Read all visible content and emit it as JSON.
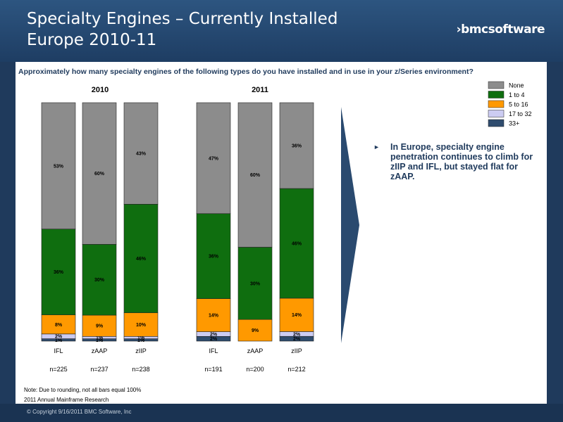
{
  "slide": {
    "title_line1": "Specialty Engines – Currently Installed",
    "title_line2": "Europe 2010-11",
    "logo_text": "›bmcsoftware",
    "question": "Approximately how many specialty engines of the following types do you have installed and in use in your z/Series environment?",
    "note": "Note: Due to rounding, not all bars equal 100%",
    "source": "2011 Annual Mainframe Research",
    "copyright": "© Copyright 9/16/2011 BMC Software, Inc",
    "bullet_mark": "►",
    "bullet": "In Europe, specialty engine penetration continues to climb for zIIP and IFL, but stayed flat for zAAP."
  },
  "colors": {
    "header": "#2d5580",
    "arrow": "#2a4a6f",
    "None": "#8c8c8c",
    "1 to 4": "#0f6e0f",
    "5 to 16": "#ff9900",
    "17 to 32": "#ccccf2",
    "33+": "#2f4c6e"
  },
  "chart_data": {
    "type": "bar",
    "stacked": true,
    "legend": [
      "None",
      "1 to 4",
      "5 to 16",
      "17 to 32",
      "33+"
    ],
    "legend_placement": "top-right",
    "panels": [
      {
        "title": "2010",
        "categories": [
          "IFL",
          "zAAP",
          "zIIP"
        ],
        "n_labels": [
          "n=225",
          "n=237",
          "n=238"
        ],
        "series": [
          {
            "name": "33+",
            "values": [
              1,
              1,
              1
            ]
          },
          {
            "name": "17 to 32",
            "values": [
              2,
              1,
              1
            ]
          },
          {
            "name": "5 to 16",
            "values": [
              8,
              9,
              10
            ]
          },
          {
            "name": "1 to 4",
            "values": [
              36,
              30,
              46
            ]
          },
          {
            "name": "None",
            "values": [
              53,
              60,
              43
            ]
          }
        ]
      },
      {
        "title": "2011",
        "categories": [
          "IFL",
          "zAAP",
          "zIIP"
        ],
        "n_labels": [
          "n=191",
          "n=200",
          "n=212"
        ],
        "series": [
          {
            "name": "33+",
            "values": [
              2,
              0,
              2
            ]
          },
          {
            "name": "17 to 32",
            "values": [
              2,
              0,
              2
            ]
          },
          {
            "name": "5 to 16",
            "values": [
              14,
              9,
              14
            ]
          },
          {
            "name": "1 to 4",
            "values": [
              36,
              30,
              46
            ]
          },
          {
            "name": "None",
            "values": [
              47,
              60,
              36
            ]
          }
        ]
      }
    ]
  }
}
